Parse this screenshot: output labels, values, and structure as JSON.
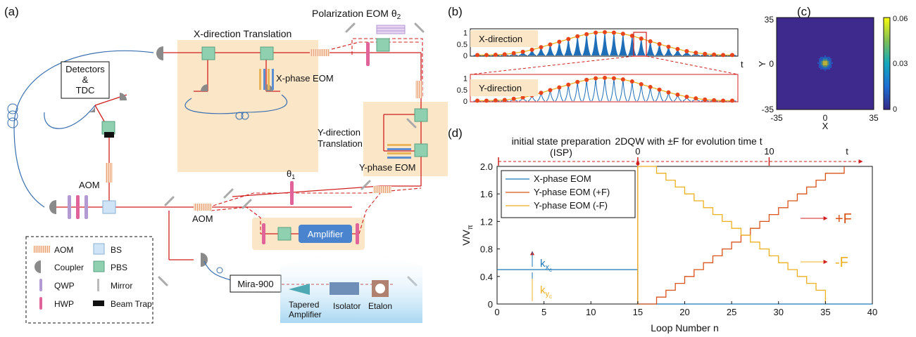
{
  "panels": {
    "a": "(a)",
    "b": "(b)",
    "c": "(c)",
    "d": "(d)"
  },
  "setup": {
    "polarization_eom": "Polarization EOM θ",
    "polarization_eom_sub": "2",
    "x_translation": "X-direction Translation",
    "x_phase_eom": "X-phase EOM",
    "detectors_line1": "Detectors",
    "detectors_line2": "&",
    "detectors_line3": "TDC",
    "y_translation_line1": "Y-direction",
    "y_translation_line2": "Translation",
    "y_phase_eom": "Y-phase EOM",
    "theta1": "θ",
    "theta1_sub": "1",
    "aom_left": "AOM",
    "aom_bottom": "AOM",
    "amplifier": "Amplifier",
    "mira": "Mira-900",
    "tapered_line1": "Tapered",
    "tapered_line2": "Amplifier",
    "isolator": "Isolator",
    "etalon": "Etalon"
  },
  "legend_a": {
    "aom": "AOM",
    "bs": "BS",
    "coupler": "Coupler",
    "pbs": "PBS",
    "qwp": "QWP",
    "mirror": "Mirror",
    "hwp": "HWP",
    "beam_trap": "Beam Trap"
  },
  "chart_data": [
    {
      "panel": "b-top",
      "type": "area",
      "label": "X-direction",
      "xlabel": "t",
      "yticks": [
        "1",
        "0.5",
        "0"
      ],
      "ylim": [
        0,
        1.2
      ],
      "x": [
        0,
        1,
        2,
        3,
        4,
        5,
        6,
        7,
        8,
        9,
        10,
        11,
        12,
        13,
        14,
        15,
        16,
        17,
        18,
        19,
        20,
        21,
        22,
        23,
        24,
        25,
        26,
        27,
        28
      ],
      "peaks": [
        0.02,
        0.02,
        0.03,
        0.05,
        0.1,
        0.16,
        0.25,
        0.36,
        0.48,
        0.6,
        0.72,
        0.84,
        0.93,
        1.0,
        1.02,
        1.0,
        0.95,
        0.86,
        0.74,
        0.62,
        0.5,
        0.38,
        0.28,
        0.19,
        0.12,
        0.07,
        0.04,
        0.02,
        0.02
      ]
    },
    {
      "panel": "b-bottom",
      "type": "line",
      "label": "Y-direction",
      "yticks": [
        "1",
        "0.5",
        "0"
      ],
      "ylim": [
        0,
        1.2
      ],
      "x": [
        0,
        1,
        2,
        3,
        4,
        5,
        6,
        7,
        8,
        9,
        10,
        11,
        12,
        13,
        14,
        15,
        16,
        17,
        18,
        19,
        20,
        21,
        22,
        23,
        24,
        25,
        26,
        27,
        28
      ],
      "peaks": [
        0.02,
        0.02,
        0.03,
        0.05,
        0.1,
        0.16,
        0.25,
        0.36,
        0.48,
        0.6,
        0.72,
        0.84,
        0.93,
        1.0,
        1.02,
        1.0,
        0.95,
        0.86,
        0.74,
        0.62,
        0.5,
        0.38,
        0.28,
        0.19,
        0.12,
        0.07,
        0.04,
        0.02,
        0.02
      ]
    },
    {
      "panel": "c",
      "type": "heatmap",
      "xlabel": "X",
      "ylabel": "Y",
      "xticks": [
        "-35",
        "0",
        "35"
      ],
      "yticks": [
        "35",
        "0",
        "-35"
      ],
      "colorbar_ticks": [
        "0.06",
        "0.03",
        "0"
      ],
      "background": "#3d2a8c"
    },
    {
      "panel": "d",
      "type": "line",
      "xlabel": "Loop Number n",
      "ylabel": "V/V",
      "ylabel_sub": "π",
      "xlim": [
        0,
        40
      ],
      "ylim": [
        0,
        2.0
      ],
      "xticks": [
        "0",
        "5",
        "10",
        "15",
        "20",
        "25",
        "30",
        "35",
        "40"
      ],
      "yticks": [
        "0",
        "0.4",
        "0.8",
        "1.2",
        "1.6",
        "2.0"
      ],
      "header_left_line1": "initial state preparation",
      "header_left_line2": "(ISP)",
      "header_right": "2DQW with ±F for evolution time t",
      "header_ticks": [
        "0",
        "10",
        "t"
      ],
      "kx": "k",
      "kx_sub": "x",
      "kx_subsub": "c",
      "ky": "k",
      "ky_sub": "y",
      "ky_subsub": "c",
      "plus_f": "+F",
      "minus_f": "-F",
      "series": [
        {
          "name": "X-phase EOM",
          "color": "#1f77b4",
          "x": [
            0,
            15,
            15,
            40
          ],
          "y": [
            0.5,
            0.5,
            0,
            0
          ]
        },
        {
          "name": "Y-phase EOM (+F)",
          "color": "#d95319",
          "x": [
            15,
            15,
            17,
            17,
            18,
            18,
            19,
            19,
            20,
            20,
            21,
            21,
            22,
            22,
            23,
            23,
            24,
            24,
            25,
            25,
            26,
            26,
            27,
            27,
            28,
            28,
            29,
            29,
            30,
            30,
            31,
            31,
            32,
            32,
            33,
            33,
            34,
            34,
            35,
            35,
            37,
            37
          ],
          "y": [
            2.0,
            0,
            0,
            0.1,
            0.1,
            0.2,
            0.2,
            0.3,
            0.3,
            0.4,
            0.4,
            0.5,
            0.5,
            0.6,
            0.6,
            0.7,
            0.7,
            0.8,
            0.8,
            0.9,
            0.9,
            1.0,
            1.0,
            1.1,
            1.1,
            1.2,
            1.2,
            1.3,
            1.3,
            1.4,
            1.4,
            1.5,
            1.5,
            1.6,
            1.6,
            1.7,
            1.7,
            1.8,
            1.8,
            1.9,
            1.9,
            2.0
          ]
        },
        {
          "name": "Y-phase EOM (-F)",
          "color": "#edb120",
          "x": [
            15,
            15,
            17,
            17,
            18,
            18,
            19,
            19,
            20,
            20,
            21,
            21,
            22,
            22,
            23,
            23,
            24,
            24,
            25,
            25,
            26,
            26,
            27,
            27,
            28,
            28,
            29,
            29,
            30,
            30,
            31,
            31,
            32,
            32,
            33,
            33,
            34,
            34,
            35,
            35
          ],
          "y": [
            0,
            2.0,
            2.0,
            1.9,
            1.9,
            1.8,
            1.8,
            1.7,
            1.7,
            1.6,
            1.6,
            1.5,
            1.5,
            1.4,
            1.4,
            1.3,
            1.3,
            1.2,
            1.2,
            1.1,
            1.1,
            1.0,
            1.0,
            0.9,
            0.9,
            0.8,
            0.8,
            0.7,
            0.7,
            0.6,
            0.6,
            0.5,
            0.5,
            0.4,
            0.4,
            0.3,
            0.3,
            0.2,
            0.2,
            0
          ]
        }
      ],
      "ky_level": 0.0
    }
  ]
}
